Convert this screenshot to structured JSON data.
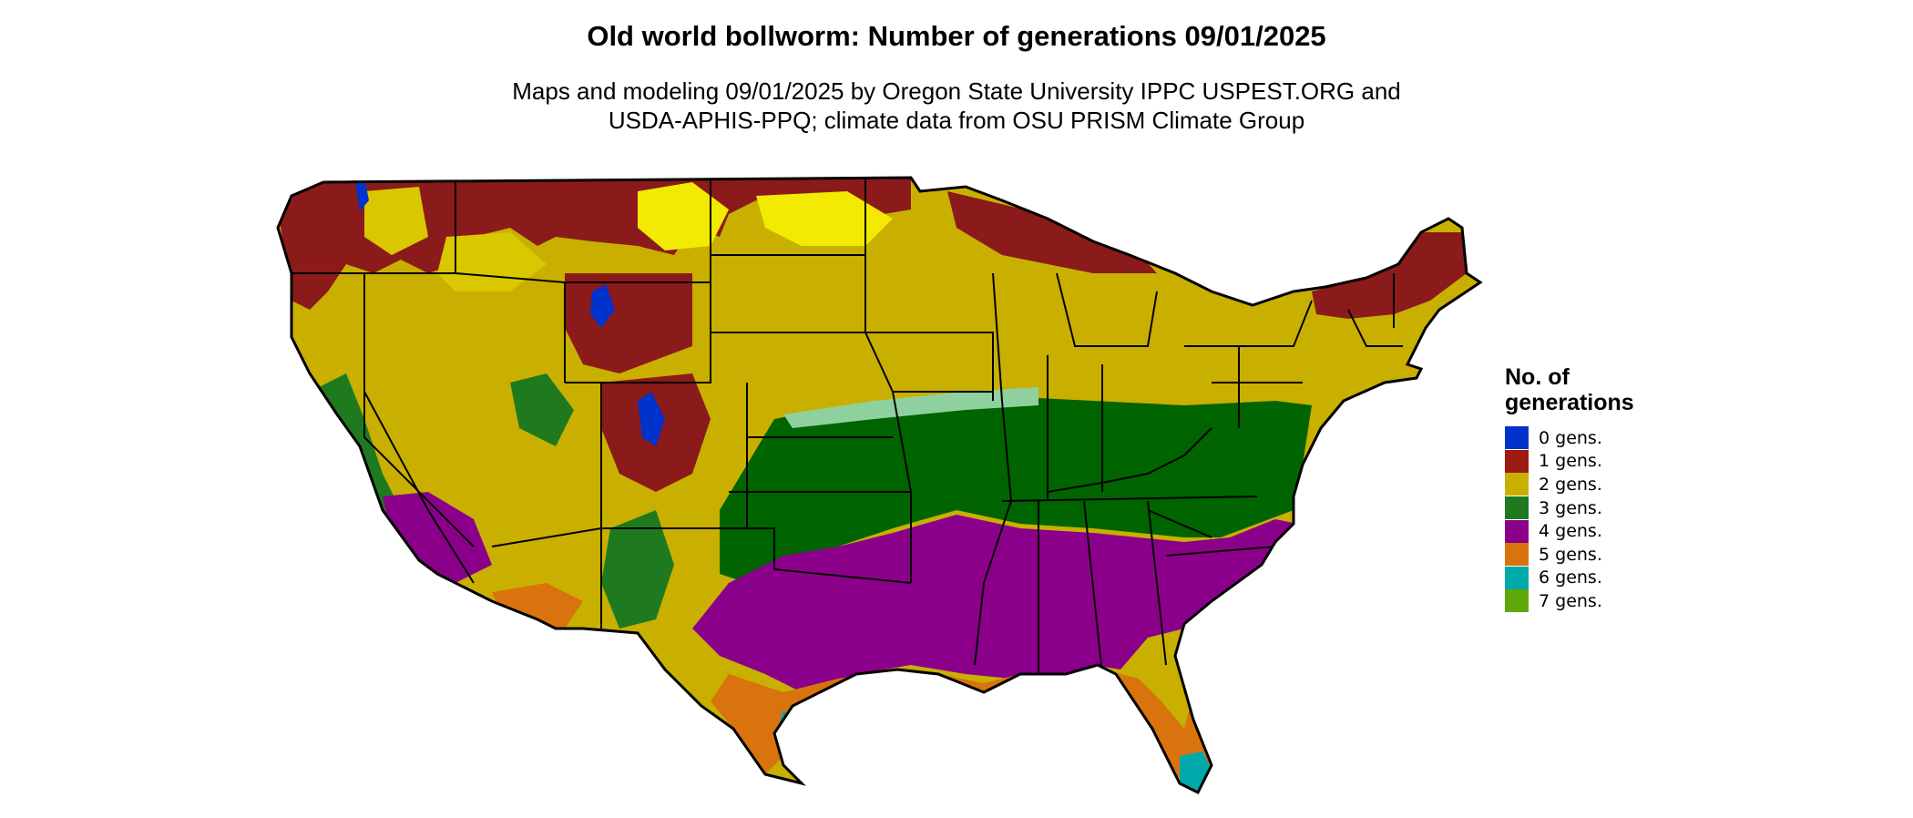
{
  "header": {
    "title": "Old world bollworm: Number of generations 09/01/2025",
    "subtitle_line1": "Maps and modeling 09/01/2025 by Oregon State University IPPC USPEST.ORG and",
    "subtitle_line2": "USDA-APHIS-PPQ; climate data from OSU PRISM Climate Group"
  },
  "legend": {
    "title_line1": "No. of",
    "title_line2": "generations",
    "items": [
      {
        "label": "0 gens.",
        "color": "#0033cc"
      },
      {
        "label": "1 gens.",
        "color": "#9e1b14"
      },
      {
        "label": "2 gens.",
        "color": "#c9b000"
      },
      {
        "label": "3 gens.",
        "color": "#1f7a1f"
      },
      {
        "label": "4 gens.",
        "color": "#8b008b"
      },
      {
        "label": "5 gens.",
        "color": "#d9730d"
      },
      {
        "label": "6 gens.",
        "color": "#00a9a9"
      },
      {
        "label": "7 gens.",
        "color": "#5fa80a"
      }
    ]
  },
  "colors": {
    "border": "#000000",
    "yellow_highlight": "#f2ea00",
    "dark_green": "#006400",
    "pale_green": "#8fd19e"
  }
}
